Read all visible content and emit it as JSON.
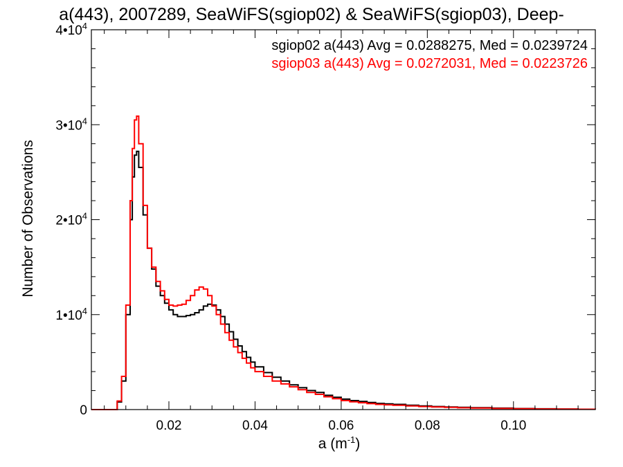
{
  "chart_data": {
    "type": "line",
    "step": true,
    "title": "a(443), 2007289, SeaWiFS(sgiop02) & SeaWiFS(sgiop03), Deep-",
    "xlabel": "a (m",
    "xlabel_sup": "-1",
    "xlabel_close": ")",
    "ylabel": "Number of Observations",
    "xlim": [
      0.002,
      0.119
    ],
    "ylim": [
      0,
      40000
    ],
    "grid": false,
    "legend_position": "top-right",
    "x_ticks": [
      {
        "value": 0.02,
        "label": "0.02"
      },
      {
        "value": 0.04,
        "label": "0.04"
      },
      {
        "value": 0.06,
        "label": "0.06"
      },
      {
        "value": 0.08,
        "label": "0.08"
      },
      {
        "value": 0.1,
        "label": "0.10"
      }
    ],
    "y_ticks": [
      {
        "value": 0,
        "base": "0",
        "exp": ""
      },
      {
        "value": 10000,
        "base": "1•10",
        "exp": "4"
      },
      {
        "value": 20000,
        "base": "2•10",
        "exp": "4"
      },
      {
        "value": 30000,
        "base": "3•10",
        "exp": "4"
      },
      {
        "value": 40000,
        "base": "4•10",
        "exp": "4"
      }
    ],
    "series": [
      {
        "name": "sgiop02",
        "legend": "sgiop02 a(443) Avg = 0.0288275, Med = 0.0239724",
        "color": "#000000",
        "points": [
          [
            0.002,
            0
          ],
          [
            0.007,
            0
          ],
          [
            0.008,
            800
          ],
          [
            0.009,
            3000
          ],
          [
            0.01,
            10000
          ],
          [
            0.011,
            20000
          ],
          [
            0.0115,
            24500
          ],
          [
            0.012,
            26800
          ],
          [
            0.0125,
            27200
          ],
          [
            0.013,
            25500
          ],
          [
            0.014,
            20500
          ],
          [
            0.015,
            17000
          ],
          [
            0.016,
            14800
          ],
          [
            0.017,
            13000
          ],
          [
            0.018,
            12000
          ],
          [
            0.019,
            11200
          ],
          [
            0.02,
            10500
          ],
          [
            0.021,
            10000
          ],
          [
            0.022,
            9800
          ],
          [
            0.023,
            9800
          ],
          [
            0.024,
            9900
          ],
          [
            0.025,
            10000
          ],
          [
            0.026,
            10200
          ],
          [
            0.027,
            10500
          ],
          [
            0.028,
            10900
          ],
          [
            0.029,
            11100
          ],
          [
            0.03,
            11000
          ],
          [
            0.031,
            10500
          ],
          [
            0.032,
            9800
          ],
          [
            0.033,
            9000
          ],
          [
            0.034,
            8200
          ],
          [
            0.035,
            7400
          ],
          [
            0.036,
            6700
          ],
          [
            0.037,
            6100
          ],
          [
            0.038,
            5500
          ],
          [
            0.039,
            5000
          ],
          [
            0.04,
            4500
          ],
          [
            0.042,
            3900
          ],
          [
            0.044,
            3400
          ],
          [
            0.046,
            3000
          ],
          [
            0.048,
            2600
          ],
          [
            0.05,
            2300
          ],
          [
            0.052,
            2000
          ],
          [
            0.054,
            1800
          ],
          [
            0.056,
            1500
          ],
          [
            0.058,
            1300
          ],
          [
            0.06,
            1100
          ],
          [
            0.062,
            950
          ],
          [
            0.064,
            850
          ],
          [
            0.066,
            750
          ],
          [
            0.068,
            650
          ],
          [
            0.07,
            600
          ],
          [
            0.072,
            550
          ],
          [
            0.075,
            450
          ],
          [
            0.078,
            380
          ],
          [
            0.081,
            320
          ],
          [
            0.084,
            270
          ],
          [
            0.087,
            230
          ],
          [
            0.09,
            200
          ],
          [
            0.095,
            150
          ],
          [
            0.1,
            110
          ],
          [
            0.105,
            80
          ],
          [
            0.11,
            60
          ],
          [
            0.115,
            40
          ],
          [
            0.119,
            30
          ]
        ]
      },
      {
        "name": "sgiop03",
        "legend": "sgiop03 a(443) Avg = 0.0272031, Med = 0.0223726",
        "color": "#ff0000",
        "points": [
          [
            0.002,
            0
          ],
          [
            0.007,
            0
          ],
          [
            0.008,
            900
          ],
          [
            0.009,
            3500
          ],
          [
            0.01,
            11000
          ],
          [
            0.011,
            22000
          ],
          [
            0.0115,
            27500
          ],
          [
            0.012,
            30500
          ],
          [
            0.0125,
            30900
          ],
          [
            0.013,
            28000
          ],
          [
            0.014,
            21500
          ],
          [
            0.015,
            17000
          ],
          [
            0.016,
            15000
          ],
          [
            0.017,
            13500
          ],
          [
            0.018,
            12500
          ],
          [
            0.019,
            11600
          ],
          [
            0.02,
            11000
          ],
          [
            0.021,
            10900
          ],
          [
            0.022,
            11000
          ],
          [
            0.023,
            11100
          ],
          [
            0.024,
            11500
          ],
          [
            0.025,
            12000
          ],
          [
            0.026,
            12600
          ],
          [
            0.027,
            12900
          ],
          [
            0.028,
            12700
          ],
          [
            0.029,
            12000
          ],
          [
            0.03,
            10900
          ],
          [
            0.031,
            10000
          ],
          [
            0.032,
            9000
          ],
          [
            0.033,
            8100
          ],
          [
            0.034,
            7300
          ],
          [
            0.035,
            6600
          ],
          [
            0.036,
            6000
          ],
          [
            0.037,
            5400
          ],
          [
            0.038,
            4900
          ],
          [
            0.039,
            4400
          ],
          [
            0.04,
            4000
          ],
          [
            0.042,
            3500
          ],
          [
            0.044,
            3000
          ],
          [
            0.046,
            2700
          ],
          [
            0.048,
            2400
          ],
          [
            0.05,
            2100
          ],
          [
            0.052,
            1800
          ],
          [
            0.054,
            1600
          ],
          [
            0.056,
            1350
          ],
          [
            0.058,
            1150
          ],
          [
            0.06,
            950
          ],
          [
            0.062,
            820
          ],
          [
            0.064,
            720
          ],
          [
            0.066,
            630
          ],
          [
            0.068,
            550
          ],
          [
            0.07,
            500
          ],
          [
            0.072,
            450
          ],
          [
            0.075,
            380
          ],
          [
            0.078,
            320
          ],
          [
            0.081,
            270
          ],
          [
            0.084,
            230
          ],
          [
            0.087,
            190
          ],
          [
            0.09,
            160
          ],
          [
            0.095,
            120
          ],
          [
            0.1,
            90
          ],
          [
            0.105,
            65
          ],
          [
            0.11,
            50
          ],
          [
            0.115,
            35
          ],
          [
            0.119,
            25
          ]
        ]
      }
    ]
  }
}
